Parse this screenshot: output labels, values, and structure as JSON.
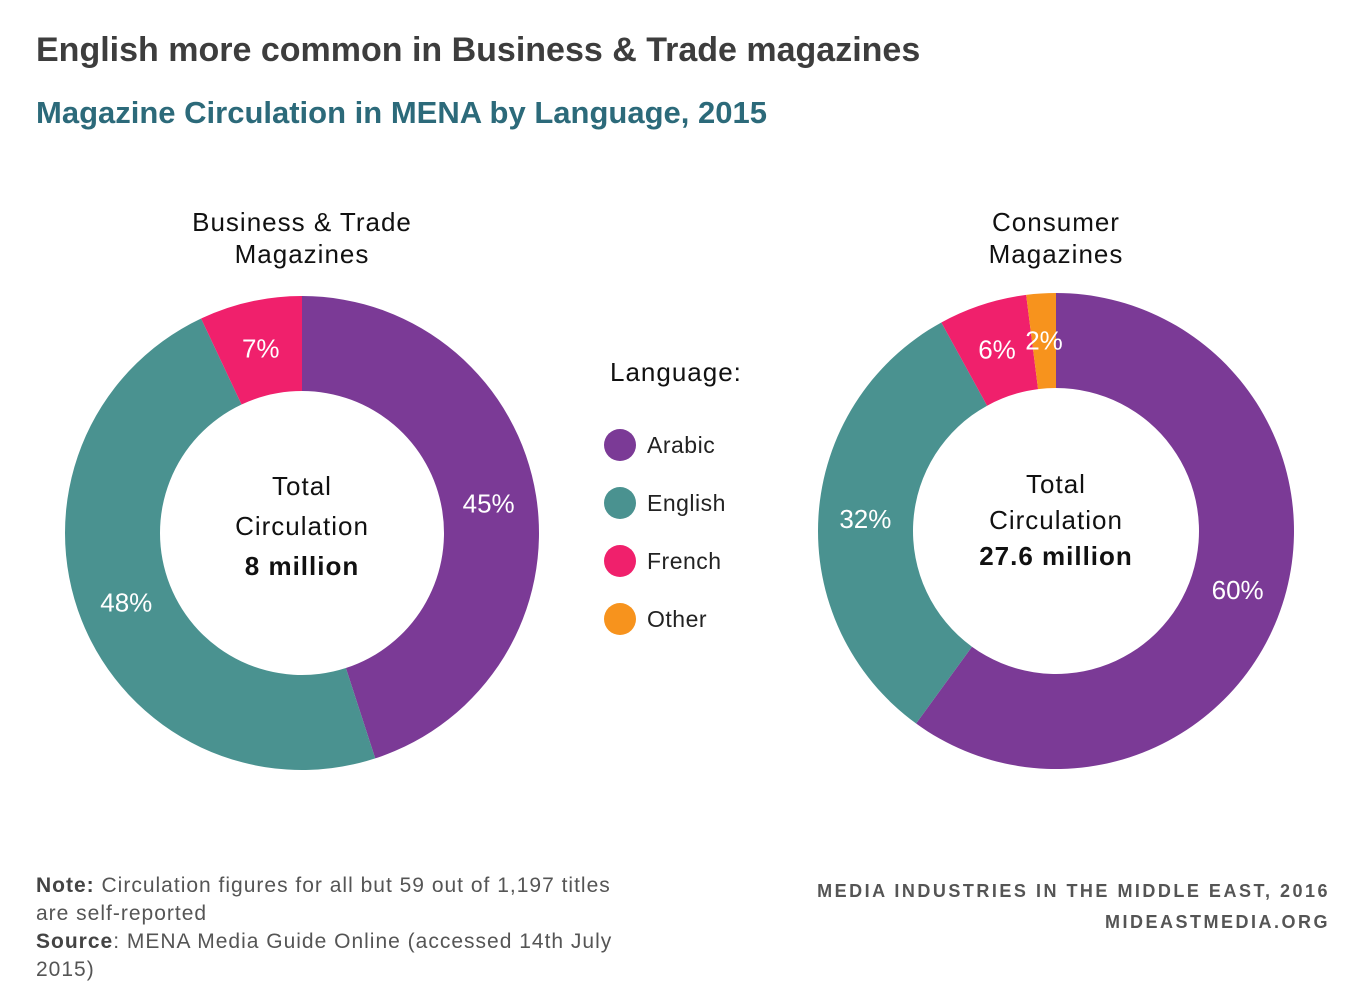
{
  "title": "English more common in Business & Trade magazines",
  "subtitle": "Magazine Circulation in MENA by Language, 2015",
  "legend": {
    "title": "Language:",
    "items": [
      {
        "label": "Arabic",
        "color": "#7b3a96"
      },
      {
        "label": "English",
        "color": "#4a9290"
      },
      {
        "label": "French",
        "color": "#f0206c"
      },
      {
        "label": "Other",
        "color": "#f7931d"
      }
    ]
  },
  "chart_data": [
    {
      "type": "pie",
      "title_lines": [
        "Business & Trade",
        "Magazines"
      ],
      "center": {
        "line1": "Total",
        "line2": "Circulation",
        "total": "8 million"
      },
      "labels": [
        "Arabic",
        "English",
        "French"
      ],
      "values": [
        45,
        48,
        7
      ],
      "value_labels": [
        "45%",
        "48%",
        "7%"
      ],
      "colors": [
        "#7b3a96",
        "#4a9290",
        "#f0206c"
      ]
    },
    {
      "type": "pie",
      "title_lines": [
        "Consumer",
        "Magazines"
      ],
      "center": {
        "line1": "Total",
        "line2": "Circulation",
        "total": "27.6 million"
      },
      "labels": [
        "Arabic",
        "English",
        "French",
        "Other"
      ],
      "values": [
        60,
        32,
        6,
        2
      ],
      "value_labels": [
        "60%",
        "32%",
        "6%",
        "2%"
      ],
      "colors": [
        "#7b3a96",
        "#4a9290",
        "#f0206c",
        "#f7931d"
      ]
    }
  ],
  "footer": {
    "note_label": "Note:",
    "note_text": " Circulation figures for all but 59 out of 1,197 titles are self-reported",
    "source_label": "Source",
    "source_text": ": MENA Media Guide Online (accessed 14th July 2015)",
    "credit_line1": "MEDIA INDUSTRIES IN THE MIDDLE EAST, 2016",
    "credit_line2": "MIDEASTMEDIA.ORG"
  }
}
